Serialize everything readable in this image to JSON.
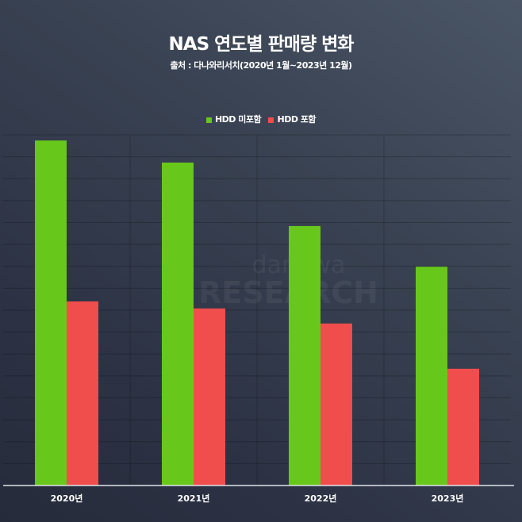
{
  "chart_data": {
    "type": "bar",
    "title": "NAS 연도별 판매량 변화",
    "subtitle": "출처 : 다나와리서치(2020년 1월~2023년 12월)",
    "categories": [
      "2020년",
      "2021년",
      "2022년",
      "2023년"
    ],
    "series": [
      {
        "name": "HDD 미포함",
        "color": "#68c71b",
        "values": [
          98.4,
          92.1,
          74.0,
          62.4
        ]
      },
      {
        "name": "HDD 포함",
        "color": "#f04d4d",
        "values": [
          52.5,
          50.5,
          46.2,
          33.3
        ]
      }
    ],
    "xlabel": "",
    "ylabel": "",
    "ylim": [
      0,
      100
    ],
    "grid": true,
    "legend": "top-center"
  },
  "watermark": {
    "line1": "danawa",
    "line2": "RESEARCH"
  }
}
